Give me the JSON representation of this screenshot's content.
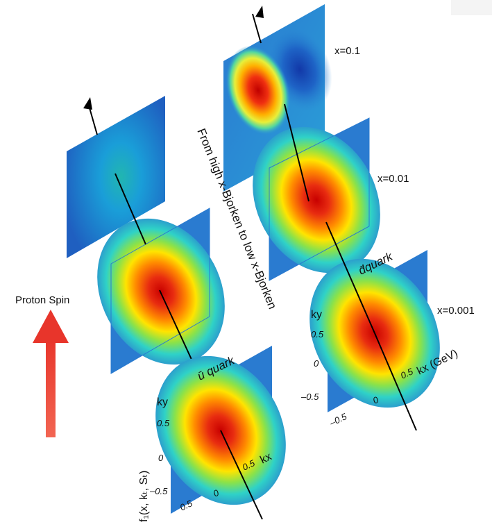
{
  "diagram": {
    "proton_spin_label": "Proton Spin",
    "vertical_caption": "From high x-Bjorken to low x-Bjorken",
    "x_labels": [
      "x=0.1",
      "x=0.01",
      "x=0.001"
    ],
    "quark_labels": {
      "ubar": "ū quark",
      "dbar": "d̄quark"
    },
    "function_label": "f₁(x, kₜ, Sₜ)",
    "axes": {
      "ky": "ky",
      "kx": "kx",
      "kx_unit": "kx (GeV)",
      "ticks": [
        "0.5",
        "0",
        "–0.5"
      ]
    },
    "colors": {
      "arrow": "#e8352b",
      "background": "#2a7bd0",
      "core": "#d40000"
    }
  }
}
